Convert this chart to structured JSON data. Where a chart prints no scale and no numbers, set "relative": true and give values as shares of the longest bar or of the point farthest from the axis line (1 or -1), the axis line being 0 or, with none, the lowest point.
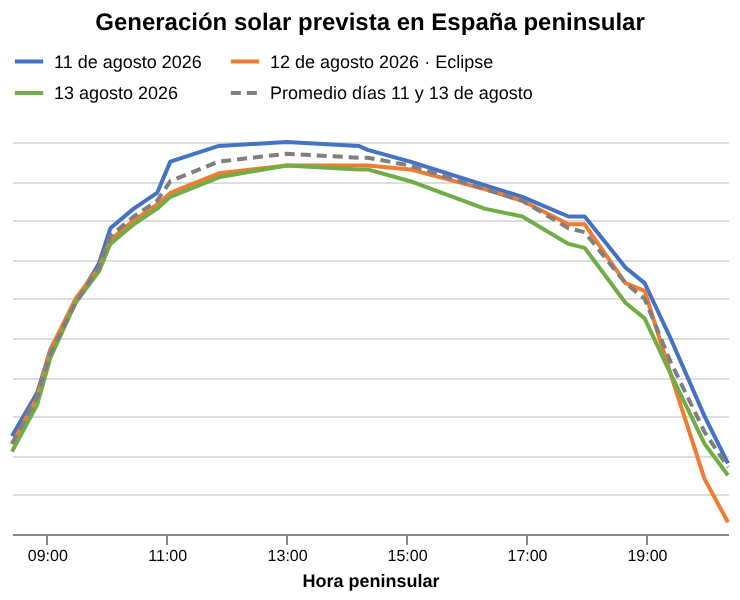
{
  "chart_data": {
    "type": "line",
    "title": "Generación solar prevista en España peninsular",
    "xlabel": "Hora peninsular",
    "relative": true,
    "x": [
      8.42,
      8.84,
      9.06,
      9.48,
      9.87,
      10.06,
      10.45,
      10.84,
      11.06,
      11.87,
      13.0,
      14.2,
      14.35,
      15.06,
      16.3,
      16.93,
      17.7,
      17.97,
      18.65,
      18.97,
      19.4,
      19.97,
      20.36
    ],
    "xlim": [
      8.42,
      20.36
    ],
    "xticks": [
      {
        "value": 9,
        "label": "09:00"
      },
      {
        "value": 11,
        "label": "11:00"
      },
      {
        "value": 13,
        "label": "13:00"
      },
      {
        "value": 15,
        "label": "15:00"
      },
      {
        "value": 17,
        "label": "17:00"
      },
      {
        "value": 19,
        "label": "19:00"
      }
    ],
    "grid": "y",
    "legend": "top",
    "marker": "none",
    "series": [
      {
        "name": "11 de agosto 2026",
        "color": "#4472c4",
        "line_style": "solid",
        "values": [
          0.25,
          0.36,
          0.47,
          0.59,
          0.69,
          0.78,
          0.83,
          0.87,
          0.95,
          0.99,
          1.0,
          0.99,
          0.98,
          0.95,
          0.89,
          0.86,
          0.81,
          0.81,
          0.68,
          0.64,
          0.5,
          0.3,
          0.18
        ]
      },
      {
        "name": "12 de agosto 2026 · Eclipse",
        "color": "#ed7d31",
        "line_style": "solid",
        "values": [
          0.23,
          0.35,
          0.47,
          0.6,
          0.68,
          0.75,
          0.8,
          0.84,
          0.87,
          0.92,
          0.94,
          0.94,
          0.94,
          0.93,
          0.88,
          0.85,
          0.79,
          0.79,
          0.64,
          0.62,
          0.41,
          0.14,
          0.03
        ]
      },
      {
        "name": "13 agosto 2026",
        "color": "#70ad47",
        "line_style": "solid",
        "values": [
          0.21,
          0.33,
          0.45,
          0.59,
          0.67,
          0.74,
          0.79,
          0.83,
          0.86,
          0.91,
          0.94,
          0.93,
          0.93,
          0.9,
          0.83,
          0.81,
          0.74,
          0.73,
          0.59,
          0.55,
          0.41,
          0.23,
          0.15
        ]
      },
      {
        "name": "Promedio días 11 y 13 de agosto",
        "color": "#7f7f7f",
        "line_style": "dashed",
        "values": [
          0.23,
          0.35,
          0.46,
          0.59,
          0.68,
          0.76,
          0.81,
          0.85,
          0.9,
          0.95,
          0.97,
          0.96,
          0.96,
          0.94,
          0.88,
          0.85,
          0.78,
          0.77,
          0.64,
          0.6,
          0.44,
          0.26,
          0.17
        ]
      }
    ]
  }
}
